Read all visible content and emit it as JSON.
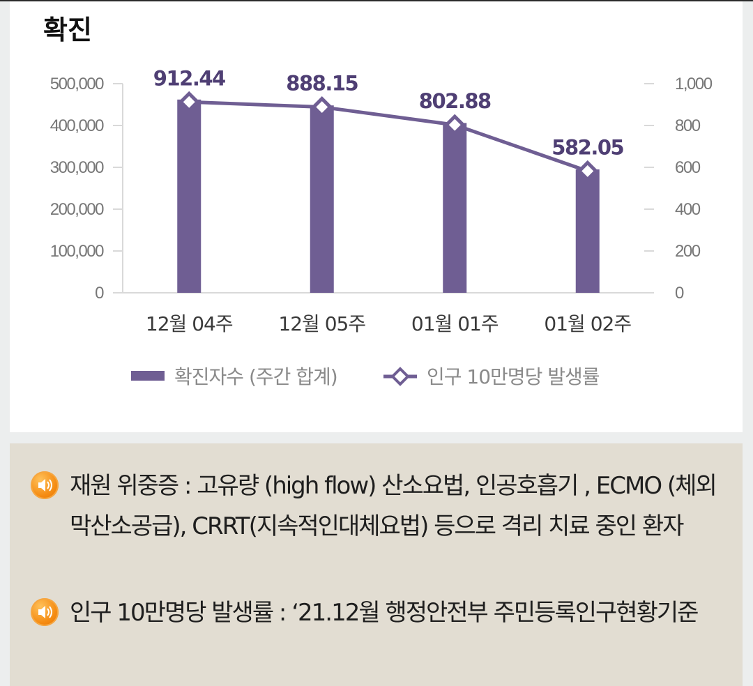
{
  "chart_data": {
    "type": "bar",
    "title": "확진",
    "categories": [
      "12월 04주",
      "12월 05주",
      "01월 01주",
      "01월 02주"
    ],
    "left_axis": {
      "ylim": [
        0,
        500000
      ],
      "ticks": [
        "0",
        "100,000",
        "200,000",
        "300,000",
        "400,000",
        "500,000"
      ]
    },
    "right_axis": {
      "ylim": [
        0,
        1000
      ],
      "ticks": [
        "0",
        "200",
        "400",
        "600",
        "800",
        "1,000"
      ]
    },
    "series": [
      {
        "name": "확진자수 (주간 합계)",
        "kind": "bar",
        "axis": "left",
        "values": [
          462000,
          448000,
          406000,
          295000
        ],
        "color": "#6f5e93"
      },
      {
        "name": "인구 10만명당 발생률",
        "kind": "line",
        "axis": "right",
        "values": [
          912.44,
          888.15,
          802.88,
          582.05
        ],
        "labels": [
          "912.44",
          "888.15",
          "802.88",
          "582.05"
        ],
        "color": "#6f5e93",
        "marker": "diamond"
      }
    ],
    "legend": {
      "placement": "bottom",
      "bar_label": "확진자수 (주간 합계)",
      "line_label": "인구 10만명당 발생률"
    },
    "grid": false
  },
  "notes": [
    {
      "icon": "speaker-icon",
      "text": "재원 위중증 : 고유량 (high flow) 산소요법, 인공호흡기 , ECMO (체외막산소공급), CRRT(지속적인대체요법) 등으로 격리 치료 중인 환자"
    },
    {
      "icon": "speaker-icon",
      "text": "인구 10만명당 발생률 : ‘21.12월 행정안전부 주민등록인구현황기준"
    }
  ]
}
